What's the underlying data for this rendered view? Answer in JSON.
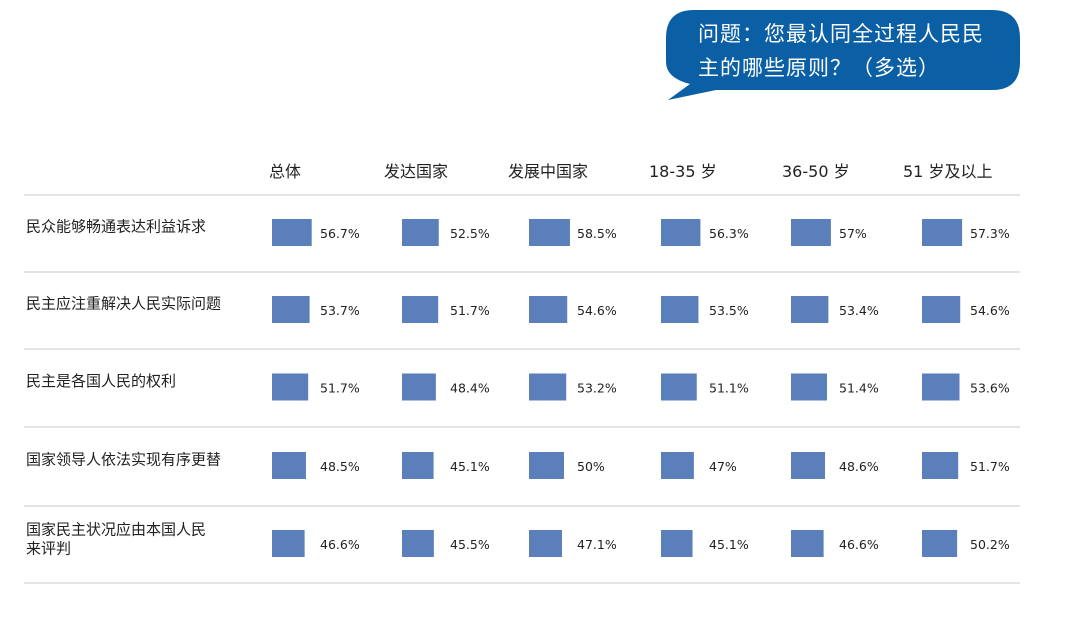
{
  "question": {
    "line1": "问题：您最认同全过程人民民",
    "line2": "主的哪些原则？（多选）"
  },
  "colors": {
    "bar": "#5b7fba",
    "bubble": "#0b5fa5"
  },
  "chart_data": {
    "type": "table",
    "columns": [
      "总体",
      "发达国家",
      "发展中国家",
      "18-35 岁",
      "36-50 岁",
      "51 岁及以上"
    ],
    "rows": [
      {
        "label": [
          "民众能够畅通表达利益诉求"
        ],
        "values": [
          56.7,
          52.5,
          58.5,
          56.3,
          57,
          57.3
        ],
        "labels": [
          "56.7%",
          "52.5%",
          "58.5%",
          "56.3%",
          "57%",
          "57.3%"
        ]
      },
      {
        "label": [
          "民主应注重解决人民实际问题"
        ],
        "values": [
          53.7,
          51.7,
          54.6,
          53.5,
          53.4,
          54.6
        ],
        "labels": [
          "53.7%",
          "51.7%",
          "54.6%",
          "53.5%",
          "53.4%",
          "54.6%"
        ]
      },
      {
        "label": [
          "民主是各国人民的权利"
        ],
        "values": [
          51.7,
          48.4,
          53.2,
          51.1,
          51.4,
          53.6
        ],
        "labels": [
          "51.7%",
          "48.4%",
          "53.2%",
          "51.1%",
          "51.4%",
          "53.6%"
        ]
      },
      {
        "label": [
          "国家领导人依法实现有序更替"
        ],
        "values": [
          48.5,
          45.1,
          50,
          47,
          48.6,
          51.7
        ],
        "labels": [
          "48.5%",
          "45.1%",
          "50%",
          "47%",
          "48.6%",
          "51.7%"
        ]
      },
      {
        "label": [
          "国家民主状况应由本国人民",
          "来评判"
        ],
        "values": [
          46.6,
          45.5,
          47.1,
          45.1,
          46.6,
          50.2
        ],
        "labels": [
          "46.6%",
          "45.5%",
          "47.1%",
          "45.1%",
          "46.6%",
          "50.2%"
        ]
      }
    ]
  }
}
